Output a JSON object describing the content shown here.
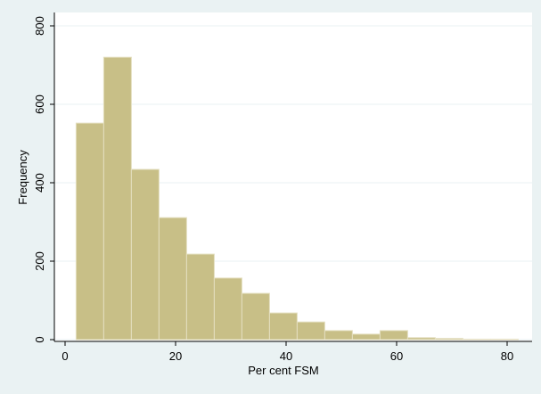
{
  "chart_data": {
    "type": "histogram",
    "x_label": "Per cent FSM",
    "y_label": "Frequency",
    "bins": [
      2,
      7,
      12,
      17,
      22,
      27,
      32,
      37,
      42,
      47,
      52,
      57,
      62,
      67,
      72,
      77,
      82
    ],
    "values": [
      552,
      720,
      434,
      311,
      218,
      157,
      118,
      68,
      45,
      23,
      14,
      23,
      5,
      3,
      1,
      1
    ],
    "color": "#c8bf87",
    "xlim": [
      0,
      80
    ],
    "xticks": [
      0,
      20,
      40,
      60,
      80
    ],
    "ylim": [
      0,
      800
    ],
    "yticks": [
      0,
      200,
      400,
      600,
      800
    ],
    "grid": true
  }
}
